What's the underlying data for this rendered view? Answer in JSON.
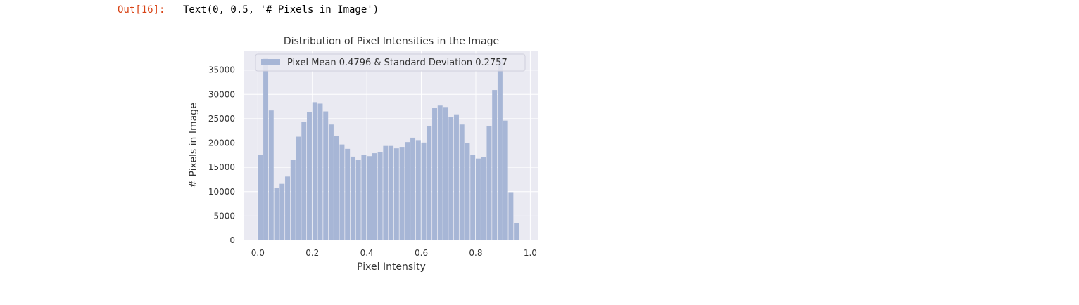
{
  "cell": {
    "prompt": "Out[16]:",
    "output": "Text(0, 0.5, '# Pixels in Image')"
  },
  "colors": {
    "background": "#eaeaf2",
    "grid": "#ffffff",
    "bar": "#a7b6d6",
    "prompt": "#d84315"
  },
  "chart_data": {
    "type": "bar",
    "title": "Distribution of Pixel Intensities in the Image",
    "xlabel": "Pixel Intensity",
    "ylabel": "# Pixels in Image",
    "xlim": [
      -0.05,
      1.03
    ],
    "ylim": [
      0,
      39000
    ],
    "xticks": [
      0.0,
      0.2,
      0.4,
      0.6,
      0.8,
      1.0
    ],
    "xtick_labels": [
      "0.0",
      "0.2",
      "0.4",
      "0.6",
      "0.8",
      "1.0"
    ],
    "yticks": [
      0,
      5000,
      10000,
      15000,
      20000,
      25000,
      30000,
      35000
    ],
    "ytick_labels": [
      "0",
      "5000",
      "10000",
      "15000",
      "20000",
      "25000",
      "30000",
      "35000"
    ],
    "grid": true,
    "legend_position": "top-right",
    "bin_start": 0.0,
    "bin_width": 0.02,
    "series": [
      {
        "name": "Pixel Mean 0.4796 & Standard Deviation 0.2757",
        "values": [
          17600,
          37500,
          26700,
          10700,
          11600,
          13100,
          16500,
          21300,
          24400,
          26400,
          28400,
          28100,
          26500,
          23800,
          21400,
          19700,
          18800,
          17200,
          16500,
          17500,
          17300,
          17900,
          18200,
          19400,
          19400,
          18900,
          19200,
          20200,
          21100,
          20600,
          20100,
          23500,
          27300,
          27700,
          27400,
          25400,
          25900,
          23800,
          20000,
          17600,
          16800,
          17100,
          23400,
          30900,
          37500,
          24600,
          9900,
          3500
        ]
      }
    ]
  }
}
